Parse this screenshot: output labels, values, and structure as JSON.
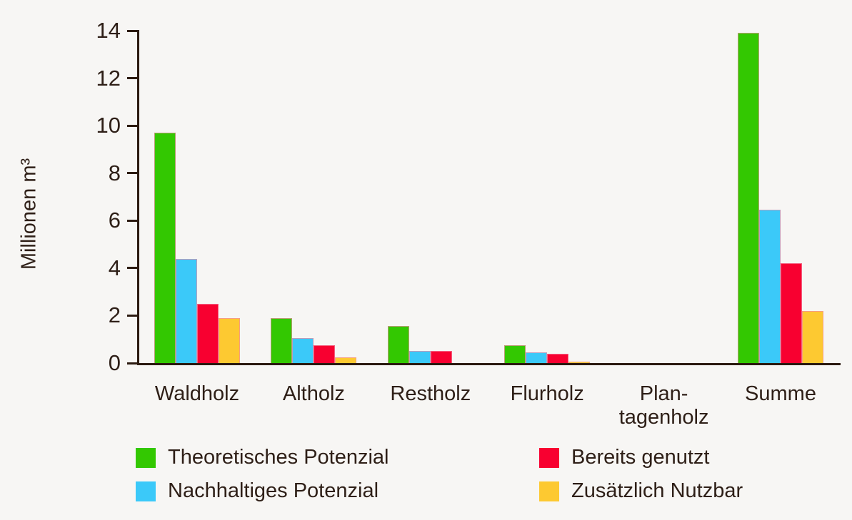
{
  "chart_data": {
    "type": "bar",
    "title": "",
    "ylabel": "Millionen m³",
    "xlabel": "",
    "ylim": [
      0,
      14
    ],
    "yticks": [
      0,
      2,
      4,
      6,
      8,
      10,
      12,
      14
    ],
    "grid": false,
    "legend_position": "bottom",
    "categories": [
      "Waldholz",
      "Altholz",
      "Restholz",
      "Flurholz",
      "Plan-\ntagenholz",
      "Summe"
    ],
    "series": [
      {
        "name": "Theoretisches Potenzial",
        "color": "#33C801",
        "values": [
          9.7,
          1.9,
          1.55,
          0.75,
          0,
          13.9
        ]
      },
      {
        "name": "Nachhaltiges Potenzial",
        "color": "#3BC9F9",
        "values": [
          4.4,
          1.05,
          0.5,
          0.45,
          0,
          6.45
        ]
      },
      {
        "name": "Bereits genutzt",
        "color": "#F80030",
        "values": [
          2.5,
          0.75,
          0.5,
          0.4,
          0,
          4.2
        ]
      },
      {
        "name": "Zusätzlich Nutzbar",
        "color": "#FDC931",
        "values": [
          1.9,
          0.25,
          0,
          0.05,
          0,
          2.2
        ]
      }
    ],
    "legend_columns": [
      [
        0,
        1
      ],
      [
        2,
        3
      ]
    ],
    "colors": {
      "background": "#F7F6F4",
      "axis": "#2B1A10",
      "text": "#2E1F17",
      "bar_outline": "#F28AA4"
    }
  }
}
